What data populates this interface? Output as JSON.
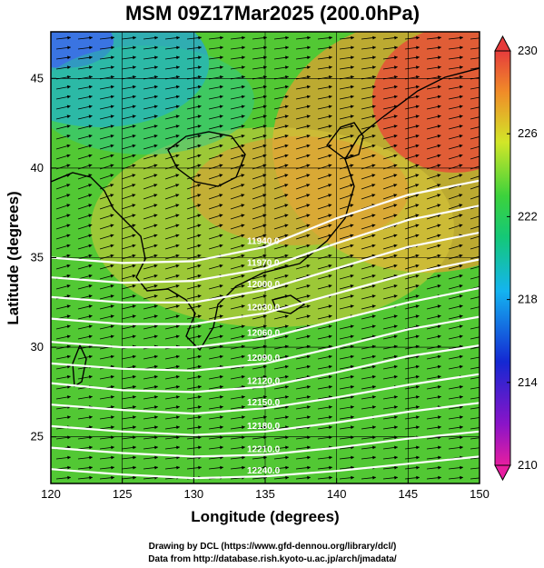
{
  "chart_data": {
    "type": "heatmap",
    "title": "MSM 09Z17Mar2025 (200.0hPa)",
    "xlabel": "Longitude (degrees)",
    "ylabel": "Latitude  (degrees)",
    "xlim": [
      120,
      150
    ],
    "ylim": [
      22.4,
      47.6
    ],
    "xticks": [
      {
        "value": 120,
        "label": "120"
      },
      {
        "value": 125,
        "label": "125"
      },
      {
        "value": 130,
        "label": "130"
      },
      {
        "value": 135,
        "label": "135"
      },
      {
        "value": 140,
        "label": "140"
      },
      {
        "value": 145,
        "label": "145"
      },
      {
        "value": 150,
        "label": "150"
      }
    ],
    "yticks": [
      {
        "value": 25,
        "label": "25"
      },
      {
        "value": 30,
        "label": "30"
      },
      {
        "value": 35,
        "label": "35"
      },
      {
        "value": 40,
        "label": "40"
      },
      {
        "value": 45,
        "label": "45"
      }
    ],
    "grid": true,
    "colorbar": {
      "min": 210,
      "max": 230,
      "ticks": [
        {
          "value": 210,
          "label": "210"
        },
        {
          "value": 214,
          "label": "214"
        },
        {
          "value": 218,
          "label": "218"
        },
        {
          "value": 222,
          "label": "222"
        },
        {
          "value": 226,
          "label": "226"
        },
        {
          "value": 230,
          "label": "230"
        }
      ]
    },
    "contours": [
      {
        "label": "11940.0",
        "points": [
          [
            120,
            35.0
          ],
          [
            125,
            34.7
          ],
          [
            130,
            34.8
          ],
          [
            135,
            35.6
          ],
          [
            140,
            37.2
          ],
          [
            145,
            38.5
          ],
          [
            150,
            39.3
          ]
        ]
      },
      {
        "label": "11970.0",
        "points": [
          [
            120,
            33.9
          ],
          [
            125,
            33.6
          ],
          [
            130,
            33.7
          ],
          [
            135,
            34.4
          ],
          [
            140,
            35.8
          ],
          [
            145,
            37.1
          ],
          [
            150,
            37.9
          ]
        ]
      },
      {
        "label": "12000.0",
        "points": [
          [
            120,
            32.8
          ],
          [
            125,
            32.5
          ],
          [
            130,
            32.5
          ],
          [
            135,
            33.2
          ],
          [
            140,
            34.4
          ],
          [
            145,
            35.6
          ],
          [
            150,
            36.4
          ]
        ]
      },
      {
        "label": "12030.0",
        "points": [
          [
            120,
            31.6
          ],
          [
            125,
            31.3
          ],
          [
            130,
            31.3
          ],
          [
            135,
            31.9
          ],
          [
            140,
            33.0
          ],
          [
            145,
            34.1
          ],
          [
            150,
            34.9
          ]
        ]
      },
      {
        "label": "12060.0",
        "points": [
          [
            120,
            30.3
          ],
          [
            125,
            30.0
          ],
          [
            130,
            30.0
          ],
          [
            135,
            30.5
          ],
          [
            140,
            31.5
          ],
          [
            145,
            32.5
          ],
          [
            150,
            33.3
          ]
        ]
      },
      {
        "label": "12090.0",
        "points": [
          [
            120,
            29.1
          ],
          [
            125,
            28.8
          ],
          [
            130,
            28.7
          ],
          [
            135,
            29.1
          ],
          [
            140,
            30.0
          ],
          [
            145,
            31.0
          ],
          [
            150,
            31.7
          ]
        ]
      },
      {
        "label": "12120.0",
        "points": [
          [
            120,
            28.0
          ],
          [
            125,
            27.6
          ],
          [
            130,
            27.5
          ],
          [
            135,
            27.8
          ],
          [
            140,
            28.6
          ],
          [
            145,
            29.5
          ],
          [
            150,
            30.1
          ]
        ]
      },
      {
        "label": "12150.0",
        "points": [
          [
            120,
            26.8
          ],
          [
            125,
            26.5
          ],
          [
            130,
            26.3
          ],
          [
            135,
            26.6
          ],
          [
            140,
            27.2
          ],
          [
            145,
            27.9
          ],
          [
            150,
            28.5
          ]
        ]
      },
      {
        "label": "12180.0",
        "points": [
          [
            120,
            25.6
          ],
          [
            125,
            25.3
          ],
          [
            130,
            25.1
          ],
          [
            135,
            25.3
          ],
          [
            140,
            25.8
          ],
          [
            145,
            26.4
          ],
          [
            150,
            26.9
          ]
        ]
      },
      {
        "label": "12210.0",
        "points": [
          [
            120,
            24.4
          ],
          [
            125,
            24.1
          ],
          [
            130,
            23.9
          ],
          [
            135,
            24.0
          ],
          [
            140,
            24.4
          ],
          [
            145,
            24.9
          ],
          [
            150,
            25.3
          ]
        ]
      },
      {
        "label": "12240.0",
        "points": [
          [
            120,
            23.2
          ],
          [
            125,
            22.9
          ],
          [
            130,
            22.7
          ],
          [
            135,
            22.8
          ],
          [
            140,
            23.1
          ],
          [
            145,
            23.5
          ],
          [
            150,
            23.9
          ]
        ]
      }
    ]
  },
  "credits": {
    "line1": "Drawing by DCL (https://www.gfd-dennou.org/library/dcl/)",
    "line2": "Data from http://database.rish.kyoto-u.ac.jp/arch/jmadata/"
  }
}
